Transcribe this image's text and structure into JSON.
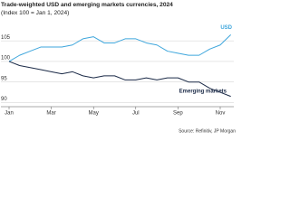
{
  "chart_data": {
    "type": "line",
    "title": "Trade-weighted USD and emerging markets currencies, 2024",
    "subtitle": "(Index 100 = Jan 1, 2024)",
    "source": "Source: Refinitiv, JP Morgan",
    "categories": [
      "Jan",
      null,
      null,
      null,
      "Mar",
      null,
      null,
      null,
      "May",
      null,
      null,
      null,
      "Jul",
      null,
      null,
      null,
      "Sep",
      null,
      null,
      null,
      "Nov",
      null
    ],
    "series": [
      {
        "name": "USD",
        "color": "#3ea6dc",
        "values": [
          100,
          101.5,
          102.5,
          103.5,
          103.5,
          103.5,
          104,
          105.5,
          106,
          104.5,
          104.5,
          105.5,
          105.5,
          104.5,
          104,
          102.5,
          102,
          101.5,
          101.5,
          103,
          104,
          106.5
        ]
      },
      {
        "name": "Emerging markets",
        "color": "#1b2a47",
        "values": [
          100,
          99,
          98.5,
          98,
          97.5,
          97,
          97.5,
          96.5,
          96,
          96.5,
          96.5,
          95.5,
          95.5,
          96,
          95.5,
          96,
          96,
          95,
          95,
          93.5,
          92.5,
          91.5
        ]
      }
    ],
    "ylim": [
      89,
      109
    ],
    "yticks": [
      90,
      95,
      100,
      105
    ],
    "grid": true
  }
}
